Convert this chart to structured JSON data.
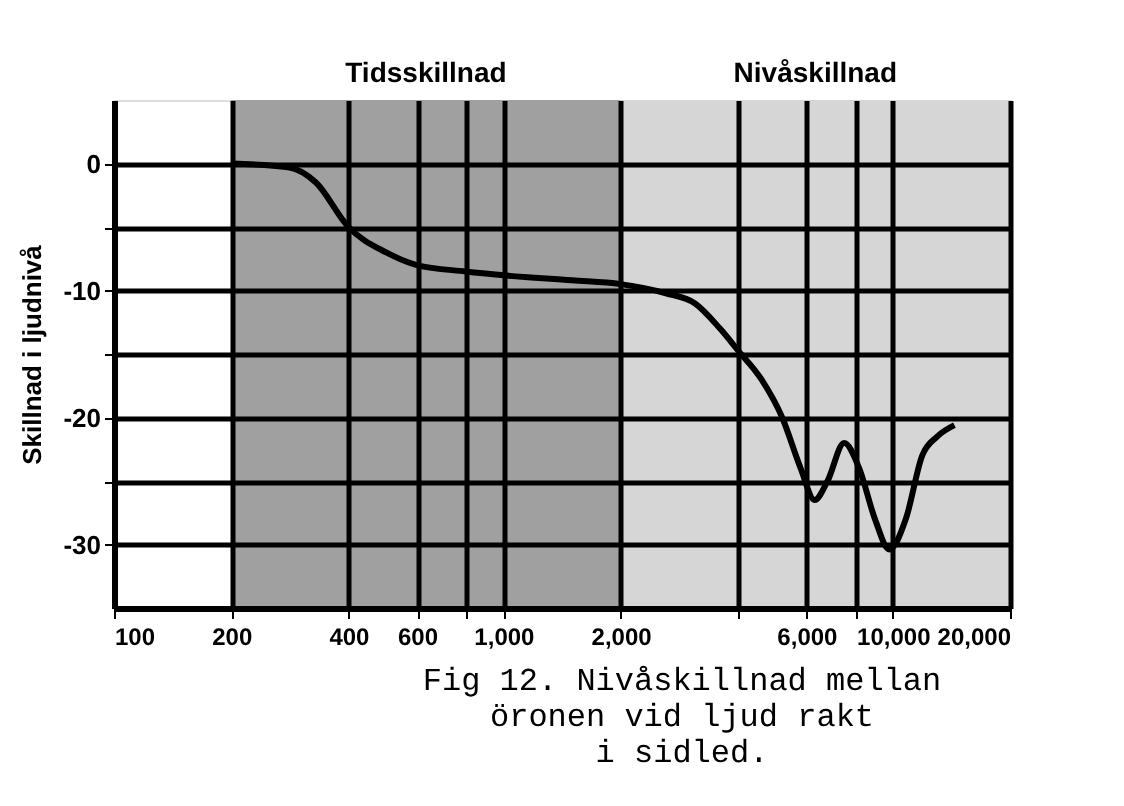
{
  "chart_data": {
    "type": "line",
    "ylabel": "Skillnad i ljudnivå",
    "log": "x",
    "xlim": [
      100,
      20000
    ],
    "ylim": [
      -35,
      5
    ],
    "xticks": [
      100,
      200,
      400,
      600,
      {
        "value": 800,
        "label": null
      },
      {
        "value": 1000,
        "label": "1,000"
      },
      {
        "value": 2000,
        "label": "2,000"
      },
      {
        "value": 4000,
        "label": null
      },
      {
        "value": 6000,
        "label": "6,000"
      },
      {
        "value": 8000,
        "label": null
      },
      {
        "value": 10000,
        "label": "10,000"
      },
      {
        "value": 20000,
        "label": "20,000"
      }
    ],
    "yticks": [
      0,
      {
        "value": -5,
        "label": null
      },
      -10,
      {
        "value": -15,
        "label": null
      },
      -20,
      {
        "value": -25,
        "label": null
      },
      -30
    ],
    "grid": true,
    "bands": [
      {
        "axis": "x",
        "from": 200,
        "to": 2000,
        "label": "Tidsskillnad",
        "color": "#a0a0a0"
      },
      {
        "axis": "x",
        "from": 2000,
        "to": 20000,
        "label": "Nivåskillnad",
        "color": "#d6d6d6"
      }
    ],
    "series": [
      {
        "color": "#000000",
        "x": [
          200,
          280,
          330,
          400,
          500,
          600,
          800,
          1000,
          1500,
          2000,
          2600,
          3100,
          3600,
          4000,
          4600,
          5200,
          5800,
          6300,
          6800,
          7500,
          8200,
          9000,
          9800,
          10800,
          11900,
          13000,
          14400
        ],
        "values": [
          0,
          -0.3,
          -1.5,
          -5,
          -7,
          -8,
          -8.5,
          -8.8,
          -9.2,
          -9.5,
          -10.2,
          -11,
          -13,
          -14.7,
          -17,
          -20,
          -24,
          -26.5,
          -25,
          -22,
          -24,
          -28,
          -30.4,
          -28,
          -23,
          -21.5,
          -20.6
        ]
      }
    ],
    "annotations": [
      "Fig 12.  Nivåskillnad mellan\nöronen vid ljud rakt\ni sidled."
    ]
  }
}
